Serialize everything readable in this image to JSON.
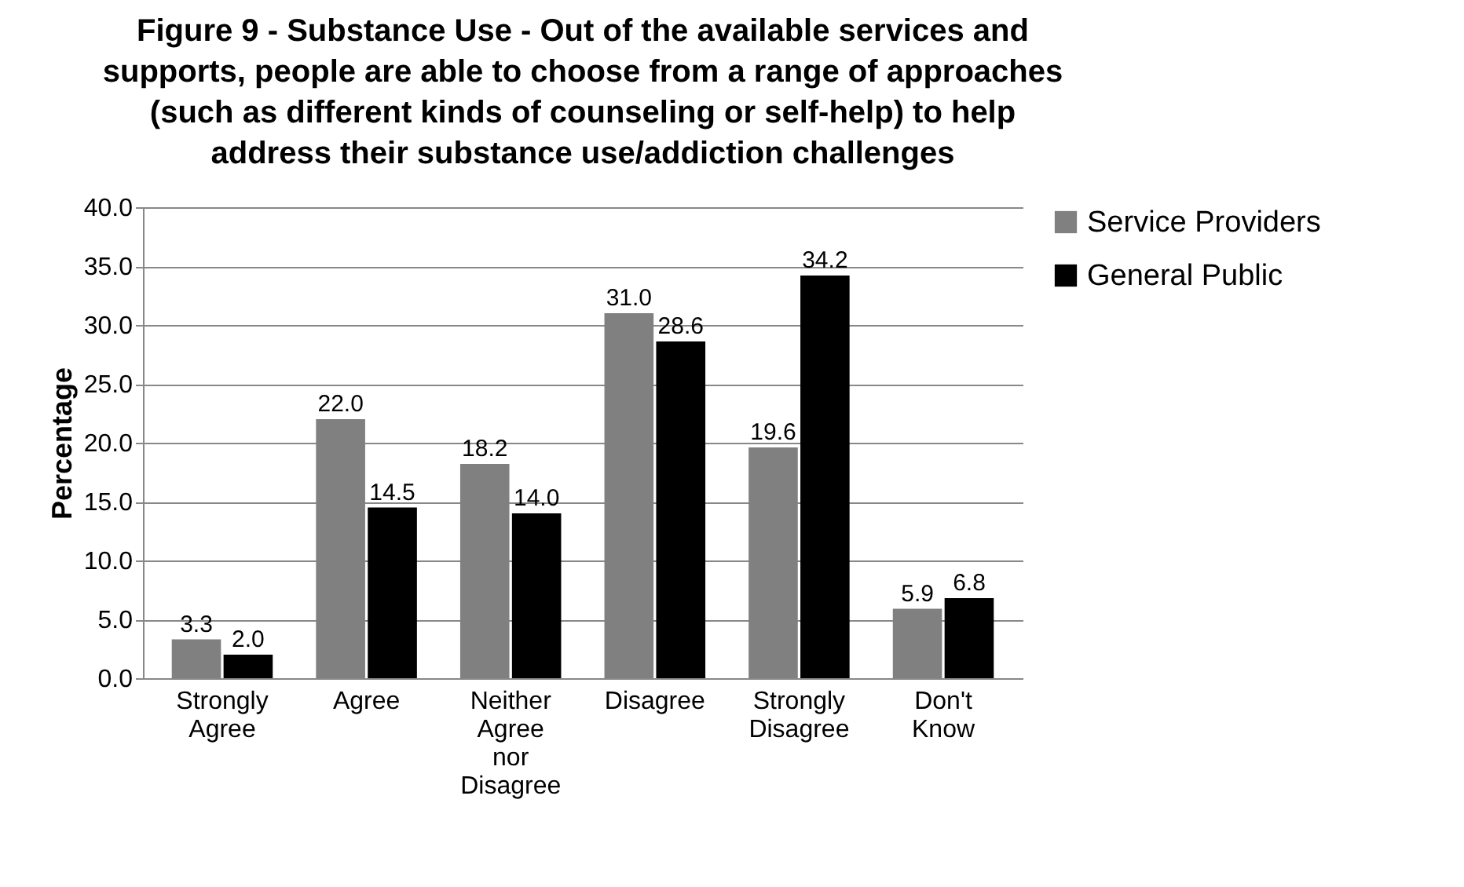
{
  "chart_data": {
    "type": "bar",
    "title": "Figure 9 - Substance Use - Out of the available services and supports, people are able to choose from a range of approaches (such as different kinds of counseling or self-help) to help address their substance use/addiction challenges",
    "ylabel": "Percentage",
    "categories": [
      "Strongly Agree",
      "Agree",
      "Neither Agree nor Disagree",
      "Disagree",
      "Strongly Disagree",
      "Don't Know"
    ],
    "series": [
      {
        "name": "Service Providers",
        "color": "#808080",
        "values": [
          3.3,
          22.0,
          18.2,
          31.0,
          19.6,
          5.9
        ],
        "value_labels": [
          "3.3",
          "22.0",
          "18.2",
          "31.0",
          "19.6",
          "5.9"
        ]
      },
      {
        "name": "General Public",
        "color": "#000000",
        "values": [
          2.0,
          14.5,
          14.0,
          28.6,
          34.2,
          6.8
        ],
        "value_labels": [
          "2.0",
          "14.5",
          "14.0",
          "28.6",
          "34.2",
          "6.8"
        ]
      }
    ],
    "ylim": [
      0,
      40
    ],
    "yticks": [
      {
        "value": 0,
        "label": "0.0"
      },
      {
        "value": 5,
        "label": "5.0"
      },
      {
        "value": 10,
        "label": "10.0"
      },
      {
        "value": 15,
        "label": "15.0"
      },
      {
        "value": 20,
        "label": "20.0"
      },
      {
        "value": 25,
        "label": "25.0"
      },
      {
        "value": 30,
        "label": "30.0"
      },
      {
        "value": 35,
        "label": "35.0"
      },
      {
        "value": 40,
        "label": "40.0"
      }
    ],
    "grid": "y",
    "legend": "right"
  }
}
